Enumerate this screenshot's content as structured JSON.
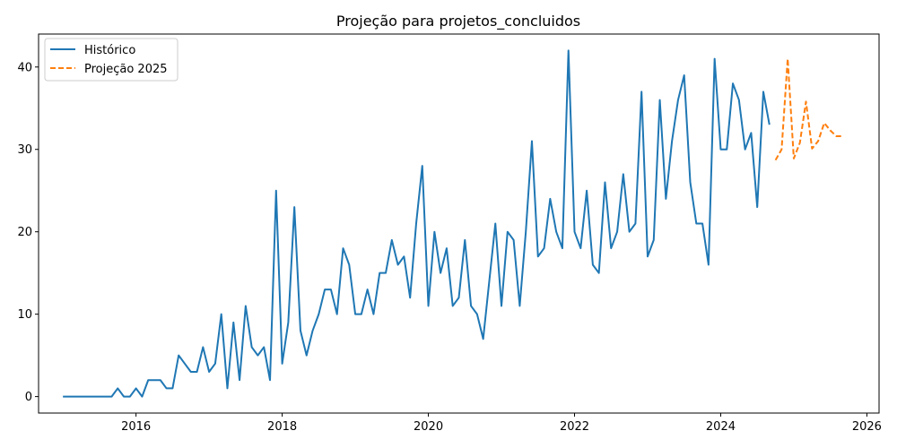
{
  "chart_data": {
    "type": "line",
    "title": "Projeção para projetos_concluidos",
    "xlabel": "",
    "ylabel": "",
    "xlim": [
      "2014-09-01",
      "2026-03-01"
    ],
    "ylim": [
      -2,
      44
    ],
    "x_ticks": [
      "2016",
      "2018",
      "2020",
      "2022",
      "2024",
      "2026"
    ],
    "y_ticks": [
      0,
      10,
      20,
      30,
      40
    ],
    "grid": false,
    "legend_position": "top-left",
    "series": [
      {
        "name": "Histórico",
        "color": "#1f77b4",
        "style": "solid",
        "start": "2015-01",
        "values": [
          0,
          0,
          0,
          0,
          0,
          0,
          0,
          0,
          0,
          1,
          0,
          0,
          1,
          0,
          2,
          2,
          2,
          1,
          1,
          5,
          4,
          3,
          3,
          6,
          3,
          4,
          10,
          1,
          9,
          2,
          11,
          6,
          5,
          6,
          2,
          25,
          4,
          9,
          23,
          8,
          5,
          8,
          10,
          13,
          13,
          10,
          18,
          16,
          10,
          10,
          13,
          10,
          15,
          15,
          19,
          16,
          17,
          12,
          21,
          28,
          11,
          20,
          15,
          18,
          11,
          12,
          19,
          11,
          10,
          7,
          14,
          21,
          11,
          20,
          19,
          11,
          20,
          31,
          17,
          18,
          24,
          20,
          18,
          42,
          20,
          18,
          25,
          16,
          15,
          26,
          18,
          20,
          27,
          20,
          21,
          37,
          17,
          19,
          36,
          24,
          31,
          36,
          39,
          26,
          21,
          21,
          16,
          41,
          30,
          30,
          38,
          36,
          30,
          32,
          23,
          37,
          33
        ]
      },
      {
        "name": "Projeção 2025",
        "color": "#ff7f0e",
        "style": "dashed",
        "start": "2024-10",
        "values": [
          28.7,
          30,
          41,
          28.9,
          30.8,
          35.8,
          30.1,
          31,
          33.2,
          32.3,
          31.6,
          31.6
        ]
      }
    ]
  }
}
